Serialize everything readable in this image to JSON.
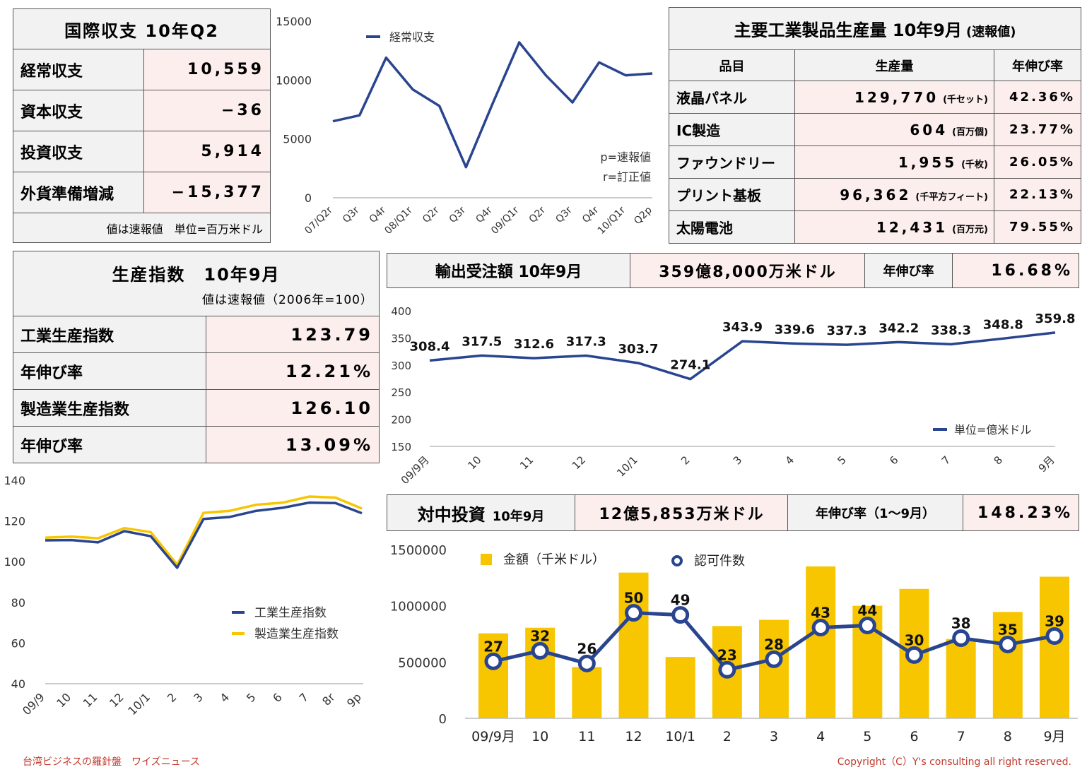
{
  "bop": {
    "title": "国際収支 10年Q2",
    "rows": [
      {
        "label": "経常収支",
        "value": "10,559"
      },
      {
        "label": "資本収支",
        "value": "−36"
      },
      {
        "label": "投資収支",
        "value": "5,914"
      },
      {
        "label": "外貨準備増減",
        "value": "−15,377"
      }
    ],
    "note": "値は速報値　単位=百万米ドル"
  },
  "industrial": {
    "title": "主要工業製品生産量 10年9月",
    "title_note": "(速報値)",
    "headers": [
      "品目",
      "生産量",
      "年伸び率"
    ],
    "rows": [
      {
        "item": "液晶パネル",
        "volume": "129,770",
        "unit": "(千セット)",
        "growth": "42.36%"
      },
      {
        "item": "IC製造",
        "volume": "604",
        "unit": "(百万個)",
        "growth": "23.77%"
      },
      {
        "item": "ファウンドリー",
        "volume": "1,955",
        "unit": "(千枚)",
        "growth": "26.05%"
      },
      {
        "item": "プリント基板",
        "volume": "96,362",
        "unit": "(千平方フィート)",
        "growth": "22.13%"
      },
      {
        "item": "太陽電池",
        "volume": "12,431",
        "unit": "(百万元)",
        "growth": "79.55%"
      }
    ]
  },
  "production_index": {
    "title": "生産指数　10年9月",
    "subtitle": "値は速報値（2006年=100）",
    "rows": [
      {
        "label": "工業生産指数",
        "value": "123.79"
      },
      {
        "label": "年伸び率",
        "value": "12.21%"
      },
      {
        "label": "製造業生産指数",
        "value": "126.10"
      },
      {
        "label": "年伸び率",
        "value": "13.09%"
      }
    ]
  },
  "export_orders": {
    "title": "輸出受注額 10年9月",
    "value": "359億8,000万米ドル",
    "growth_label": "年伸び率",
    "growth": "16.68%"
  },
  "china_investment": {
    "title": "対中投資",
    "title_small": "10年9月",
    "value": "12億5,853万米ドル",
    "growth_label": "年伸び率（1〜9月）",
    "growth": "148.23%"
  },
  "footer": {
    "left": "台湾ビジネスの羅針盤　ワイズニュース",
    "right": "Copyright（C）Y's consulting all right reserved."
  },
  "colors": {
    "navy": "#2a4590",
    "gold": "#f7c600",
    "pink": "#fdeeee",
    "header_gray": "#f2f2f2",
    "footer_red": "#c0392b"
  },
  "chart_data": [
    {
      "id": "current_account",
      "type": "line",
      "x": [
        "07/Q2r",
        "Q3r",
        "Q4r",
        "08/Q1r",
        "Q2r",
        "Q3r",
        "Q4r",
        "09/Q1r",
        "Q2r",
        "Q3r",
        "Q4r",
        "10/Q1r",
        "Q2p"
      ],
      "series": [
        {
          "name": "経常収支",
          "values": [
            6500,
            7000,
            11900,
            9200,
            7800,
            2600,
            8000,
            13200,
            10400,
            8100,
            11500,
            10400,
            10559
          ]
        }
      ],
      "ylim": [
        0,
        15000
      ],
      "yticks": [
        0,
        5000,
        10000,
        15000
      ],
      "annotations": [
        "p=速報値",
        "r=訂正値"
      ],
      "legend": "top-left",
      "grid": false
    },
    {
      "id": "export_orders",
      "type": "line",
      "x": [
        "09/9月",
        "10",
        "11",
        "12",
        "10/1",
        "2",
        "3",
        "4",
        "5",
        "6",
        "7",
        "8",
        "9月"
      ],
      "series": [
        {
          "name": "単位=億米ドル",
          "values": [
            308.4,
            317.5,
            312.6,
            317.3,
            303.7,
            274.1,
            343.9,
            339.6,
            337.3,
            342.2,
            338.3,
            348.8,
            359.8
          ]
        }
      ],
      "data_labels": [
        "308.4",
        "317.5",
        "312.6",
        "317.3",
        "303.7",
        "274.1",
        "343.9",
        "339.6",
        "337.3",
        "342.2",
        "338.3",
        "348.8",
        "359.8"
      ],
      "ylim": [
        150,
        400
      ],
      "yticks": [
        150,
        200,
        250,
        300,
        350,
        400
      ],
      "legend": "bottom-right",
      "grid": false
    },
    {
      "id": "production_index",
      "type": "line",
      "x": [
        "09/9",
        "10",
        "11",
        "12",
        "10/1",
        "2",
        "3",
        "4",
        "5",
        "6",
        "7",
        "8r",
        "9p"
      ],
      "series": [
        {
          "name": "工業生産指数",
          "values": [
            110.5,
            110.6,
            109.5,
            115,
            112.5,
            97,
            121,
            122,
            125,
            126.5,
            129,
            128.8,
            123.8
          ]
        },
        {
          "name": "製造業生産指数",
          "values": [
            111.8,
            112.3,
            111.5,
            116.5,
            114.5,
            98.5,
            124,
            125,
            128,
            129,
            132,
            131.5,
            126.1
          ]
        }
      ],
      "ylim": [
        40,
        140
      ],
      "yticks": [
        40,
        60,
        80,
        100,
        120,
        140
      ],
      "legend": "bottom-right",
      "grid": false
    },
    {
      "id": "china_investment",
      "type": "bar+line",
      "x": [
        "09/9月",
        "10",
        "11",
        "12",
        "10/1",
        "2",
        "3",
        "4",
        "5",
        "6",
        "7",
        "8",
        "9月"
      ],
      "series": [
        {
          "name": "金額（千米ドル）",
          "kind": "bar",
          "values": [
            755000,
            805000,
            455000,
            1295000,
            545000,
            820000,
            875000,
            1350000,
            1000000,
            1150000,
            705000,
            945000,
            1258530
          ]
        },
        {
          "name": "認可件数",
          "kind": "line",
          "values": [
            27,
            32,
            26,
            50,
            49,
            23,
            28,
            43,
            44,
            30,
            38,
            35,
            39
          ]
        }
      ],
      "data_labels": [
        "27",
        "32",
        "26",
        "50",
        "49",
        "23",
        "28",
        "43",
        "44",
        "30",
        "38",
        "35",
        "39"
      ],
      "ylim": [
        0,
        1500000
      ],
      "yticks": [
        "0",
        "500000",
        "1000000",
        "1500000"
      ],
      "legend": "top-left",
      "grid": false
    }
  ]
}
